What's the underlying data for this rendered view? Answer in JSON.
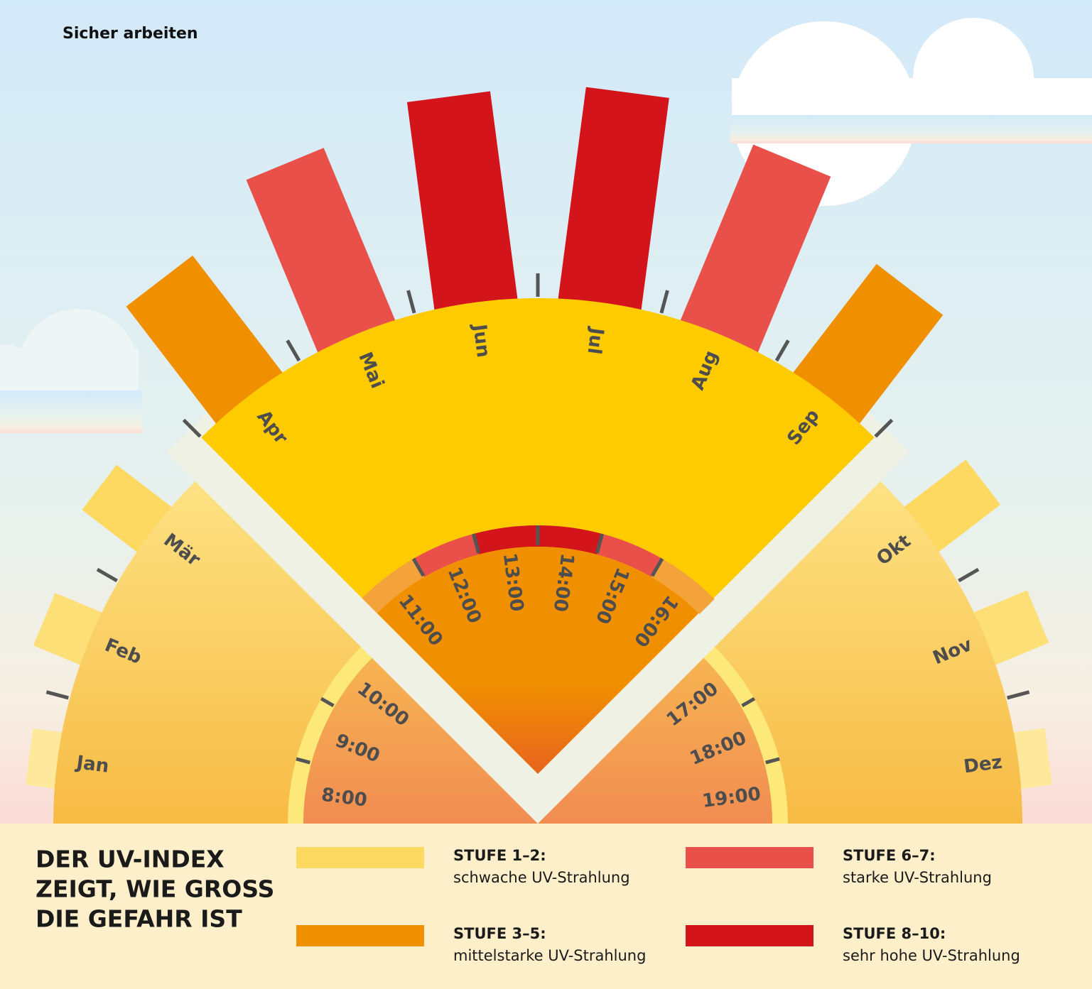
{
  "header": {
    "title": "Sicher arbeiten"
  },
  "months": [
    "Jan",
    "Feb",
    "Mär",
    "Apr",
    "Mai",
    "Jun",
    "Jul",
    "Aug",
    "Sep",
    "Okt",
    "Nov",
    "Dez"
  ],
  "hours": [
    "8:00",
    "9:00",
    "10:00",
    "11:00",
    "12:00",
    "13:00",
    "14:00",
    "15:00",
    "16:00",
    "17:00",
    "18:00",
    "19:00"
  ],
  "legend": {
    "title": [
      "DER UV-INDEX",
      "ZEIGT, WIE GROSS",
      "DIE GEFAHR IST"
    ],
    "items": [
      {
        "level": "STUFE 1–2:",
        "description": "schwache UV-Strahlung"
      },
      {
        "level": "STUFE 3–5:",
        "description": "mittelstarke UV-Strahlung"
      },
      {
        "level": "STUFE 6–7:",
        "description": "starke UV-Strahlung"
      },
      {
        "level": "STUFE 8–10:",
        "description": "sehr hohe UV-Strahlung"
      }
    ]
  }
}
